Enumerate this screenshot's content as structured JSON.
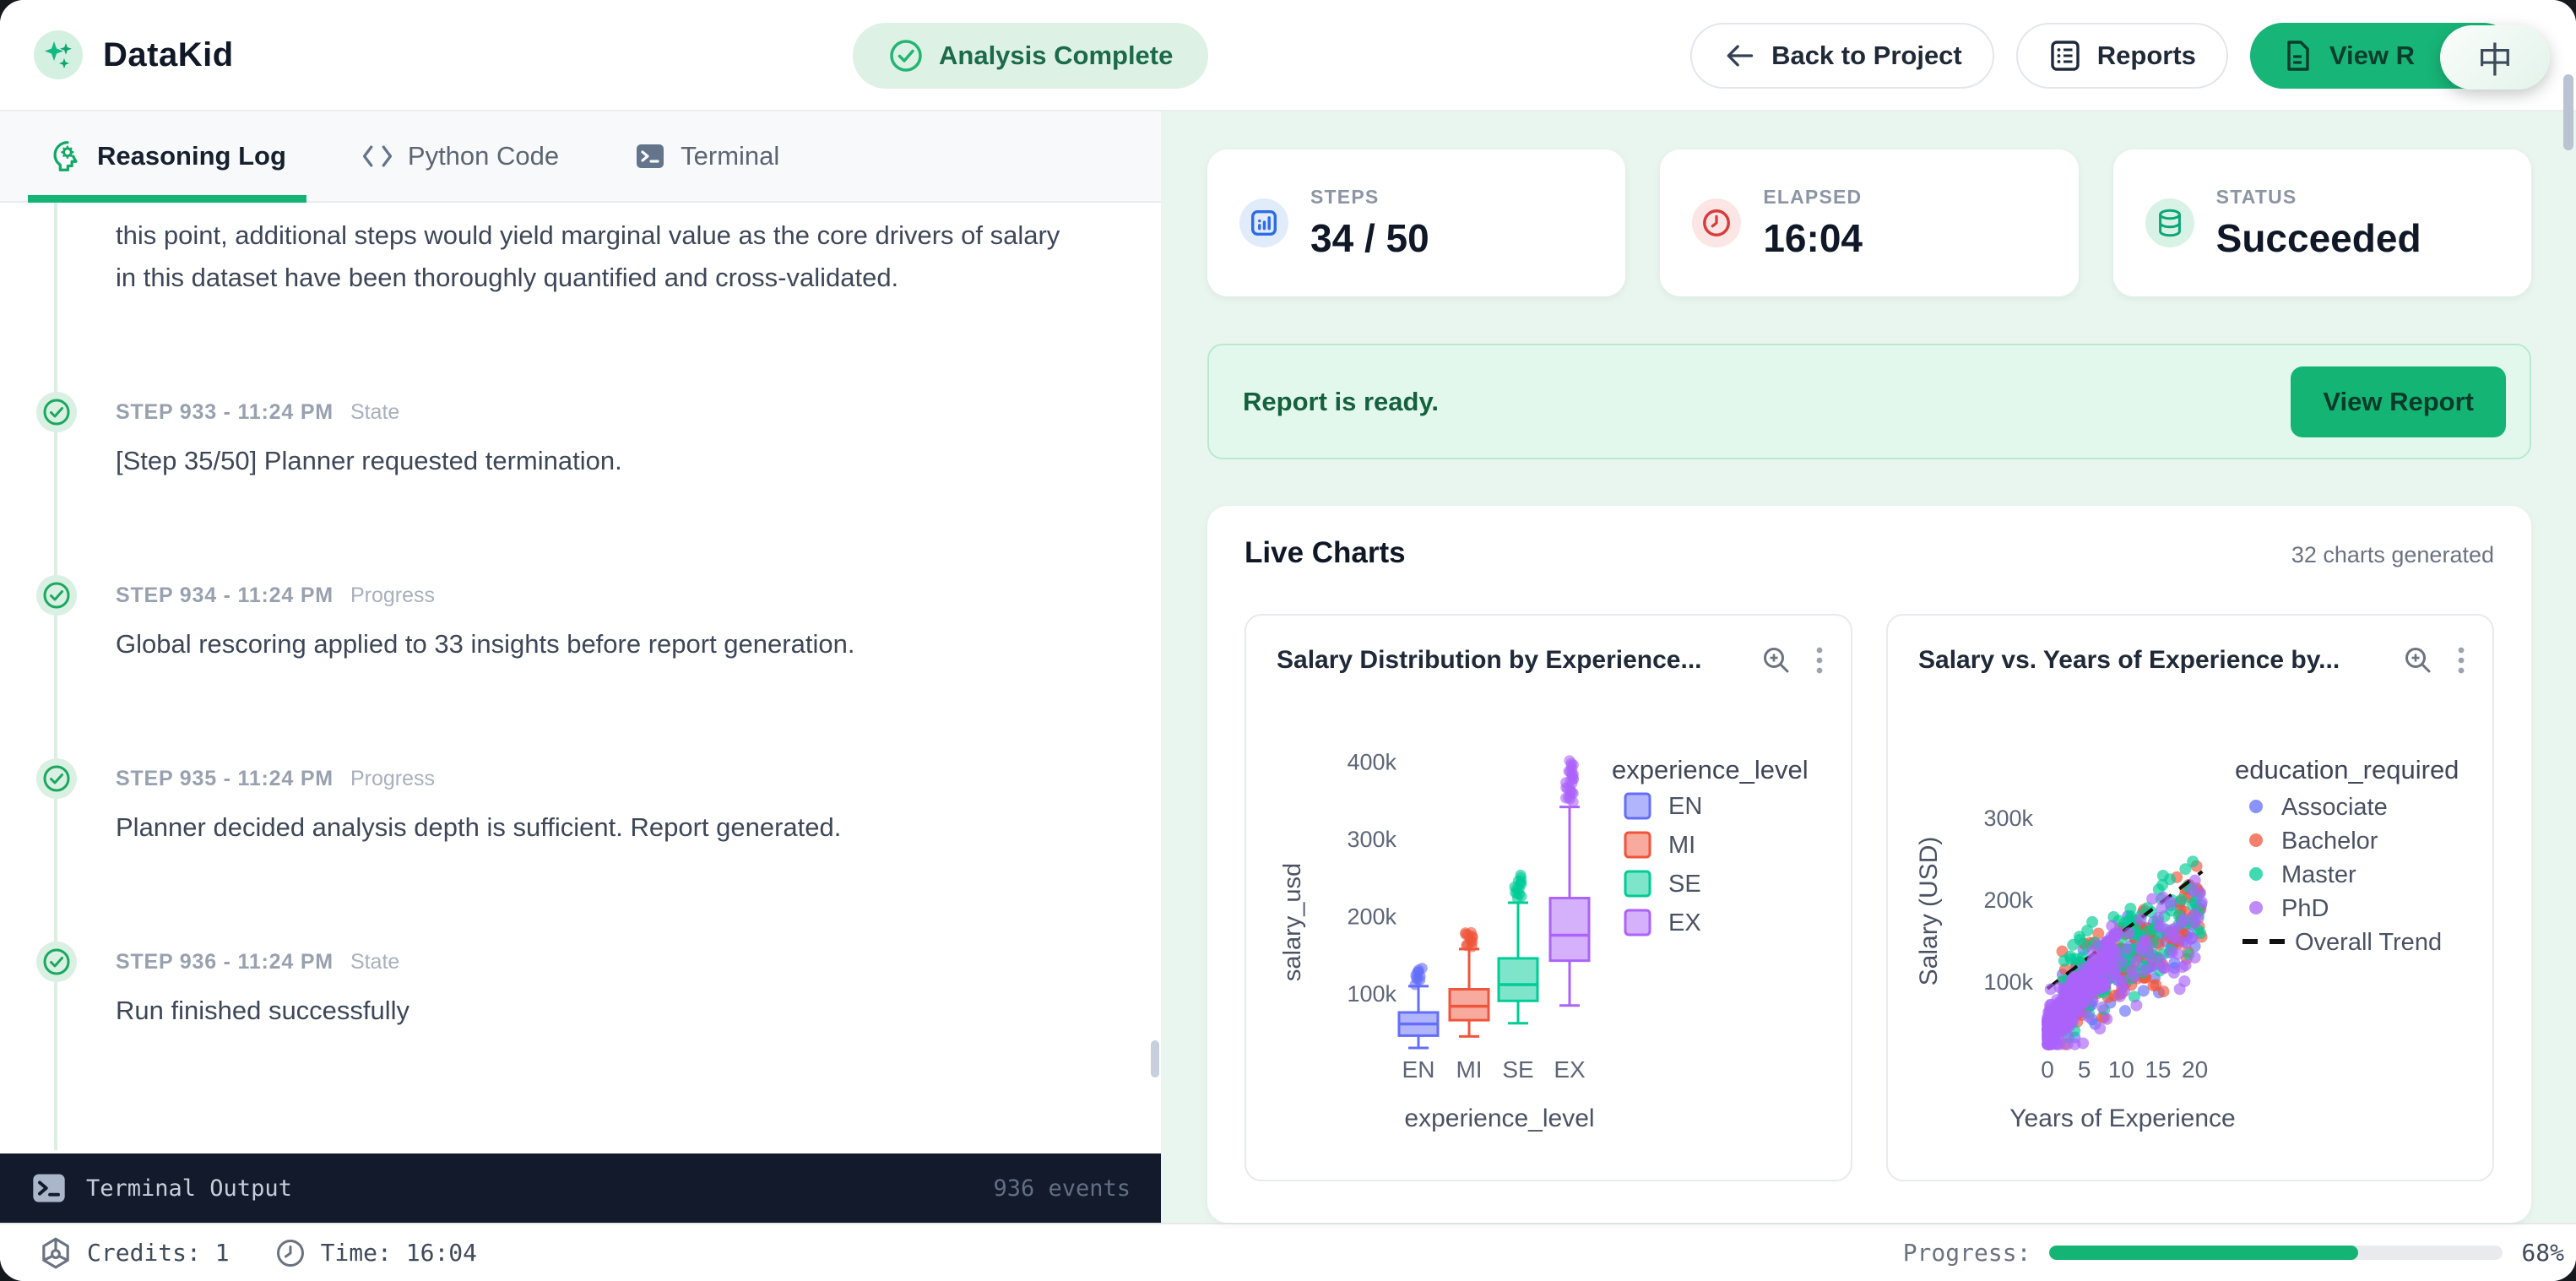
{
  "header": {
    "app_name": "DataKid",
    "status_badge": "Analysis Complete",
    "back_button": "Back to Project",
    "reports_button": "Reports",
    "view_report_button": "View R",
    "widget_glyph": "中"
  },
  "tabs": [
    {
      "label": "Reasoning Log",
      "active": true
    },
    {
      "label": "Python Code",
      "active": false
    },
    {
      "label": "Terminal",
      "active": false
    }
  ],
  "log": {
    "intro_text": "this point, additional steps would yield marginal value as the core drivers of salary in this dataset have been thoroughly quantified and cross-validated.",
    "entries": [
      {
        "step_label": "STEP 933 - 11:24 PM",
        "tag": "State",
        "message": "[Step 35/50] Planner requested termination."
      },
      {
        "step_label": "STEP 934 - 11:24 PM",
        "tag": "Progress",
        "message": "Global rescoring applied to 33 insights before report generation."
      },
      {
        "step_label": "STEP 935 - 11:24 PM",
        "tag": "Progress",
        "message": "Planner decided analysis depth is sufficient. Report generated."
      },
      {
        "step_label": "STEP 936 - 11:24 PM",
        "tag": "State",
        "message": "Run finished successfully"
      }
    ]
  },
  "terminal_bar": {
    "title": "Terminal Output",
    "events": "936 events"
  },
  "stats": [
    {
      "label": "STEPS",
      "value": "34 / 50"
    },
    {
      "label": "ELAPSED",
      "value": "16:04"
    },
    {
      "label": "STATUS",
      "value": "Succeeded"
    }
  ],
  "report_banner": {
    "text": "Report is ready.",
    "button": "View Report"
  },
  "live_charts": {
    "title": "Live Charts",
    "subtitle": "32 charts generated"
  },
  "status_bar": {
    "credits": "Credits: 1",
    "time": "Time: 16:04",
    "progress_label": "Progress:",
    "progress_percent": 68,
    "progress_text": "68%"
  },
  "colors": {
    "accent_green": "#14b474",
    "emerald_button": "#17b578",
    "mint_panel": "#e9f6ef",
    "terminal_bg": "#121a2b",
    "steps_icon_blue": "#2e6be6",
    "elapsed_icon_red": "#d93b3b",
    "status_icon_green": "#0ca678"
  },
  "chart_data": [
    {
      "type": "box",
      "title": "Salary Distribution by Experience...",
      "xlabel": "experience_level",
      "ylabel": "salary_usd",
      "y_ticks_k": [
        100,
        200,
        300,
        400
      ],
      "ylim_k": [
        0,
        430
      ],
      "grid": false,
      "legend_position": "right",
      "legend_title": "experience_level",
      "categories": [
        "EN",
        "MI",
        "SE",
        "EX"
      ],
      "series": [
        {
          "name": "EN",
          "color": "#636efa",
          "low": 30,
          "q1": 46,
          "median": 61,
          "q3": 76,
          "high": 110,
          "outlier_range_k": [
            114,
            134
          ],
          "outlier_count": 10
        },
        {
          "name": "MI",
          "color": "#ef553b",
          "low": 45,
          "q1": 66,
          "median": 84,
          "q3": 106,
          "high": 158,
          "outlier_range_k": [
            162,
            181
          ],
          "outlier_count": 12
        },
        {
          "name": "SE",
          "color": "#00cc96",
          "low": 62,
          "q1": 91,
          "median": 112,
          "q3": 146,
          "high": 218,
          "outlier_range_k": [
            224,
            252
          ],
          "outlier_count": 14
        },
        {
          "name": "EX",
          "color": "#ab63fa",
          "low": 85,
          "q1": 143,
          "median": 176,
          "q3": 224,
          "high": 342,
          "outlier_range_k": [
            348,
            400
          ],
          "outlier_count": 26
        }
      ],
      "units": "thousand USD"
    },
    {
      "type": "scatter",
      "title": "Salary vs. Years of Experience by...",
      "xlabel": "Years of Experience",
      "ylabel": "Salary (USD)",
      "x_ticks": [
        0,
        5,
        10,
        15,
        20
      ],
      "y_ticks_k": [
        100,
        200,
        300
      ],
      "xlim": [
        0,
        21.5
      ],
      "ylim_k": [
        0,
        400
      ],
      "grid": false,
      "legend_position": "right",
      "legend_title": "education_required",
      "series": [
        {
          "name": "Associate",
          "color": "#636efa",
          "n": 110,
          "x_min": 2,
          "x_max": 21,
          "x_pow": 1.25,
          "y_base_k": 62,
          "y_slope_k_per_yr": 5.5,
          "y_spread_k": 48
        },
        {
          "name": "Bachelor",
          "color": "#ef553b",
          "n": 150,
          "x_min": 2,
          "x_max": 21,
          "x_pow": 1.25,
          "y_base_k": 64,
          "y_slope_k_per_yr": 6.0,
          "y_spread_k": 52
        },
        {
          "name": "Master",
          "color": "#00cc96",
          "n": 150,
          "x_min": 2,
          "x_max": 21,
          "x_pow": 1.2,
          "y_base_k": 70,
          "y_slope_k_per_yr": 6.5,
          "y_spread_k": 55
        },
        {
          "name": "PhD",
          "color": "#ab63fa",
          "n": 430,
          "x_min": 0,
          "x_max": 21,
          "x_pow": 1.0,
          "y_base_k": 55,
          "y_slope_k_per_yr": 6.0,
          "y_spread_k": 60,
          "cluster": {
            "fraction": 0.78,
            "x_pow": 2.2,
            "x_max": 9.5,
            "y_base_k": 38,
            "y_slope_k_per_yr": 11,
            "y_spread_k": 30
          }
        }
      ],
      "trend": {
        "name": "Overall Trend",
        "color": "#111111",
        "dashed": true,
        "x0": 0,
        "y0_k": 92,
        "x1": 21,
        "y1_k": 235
      }
    }
  ]
}
